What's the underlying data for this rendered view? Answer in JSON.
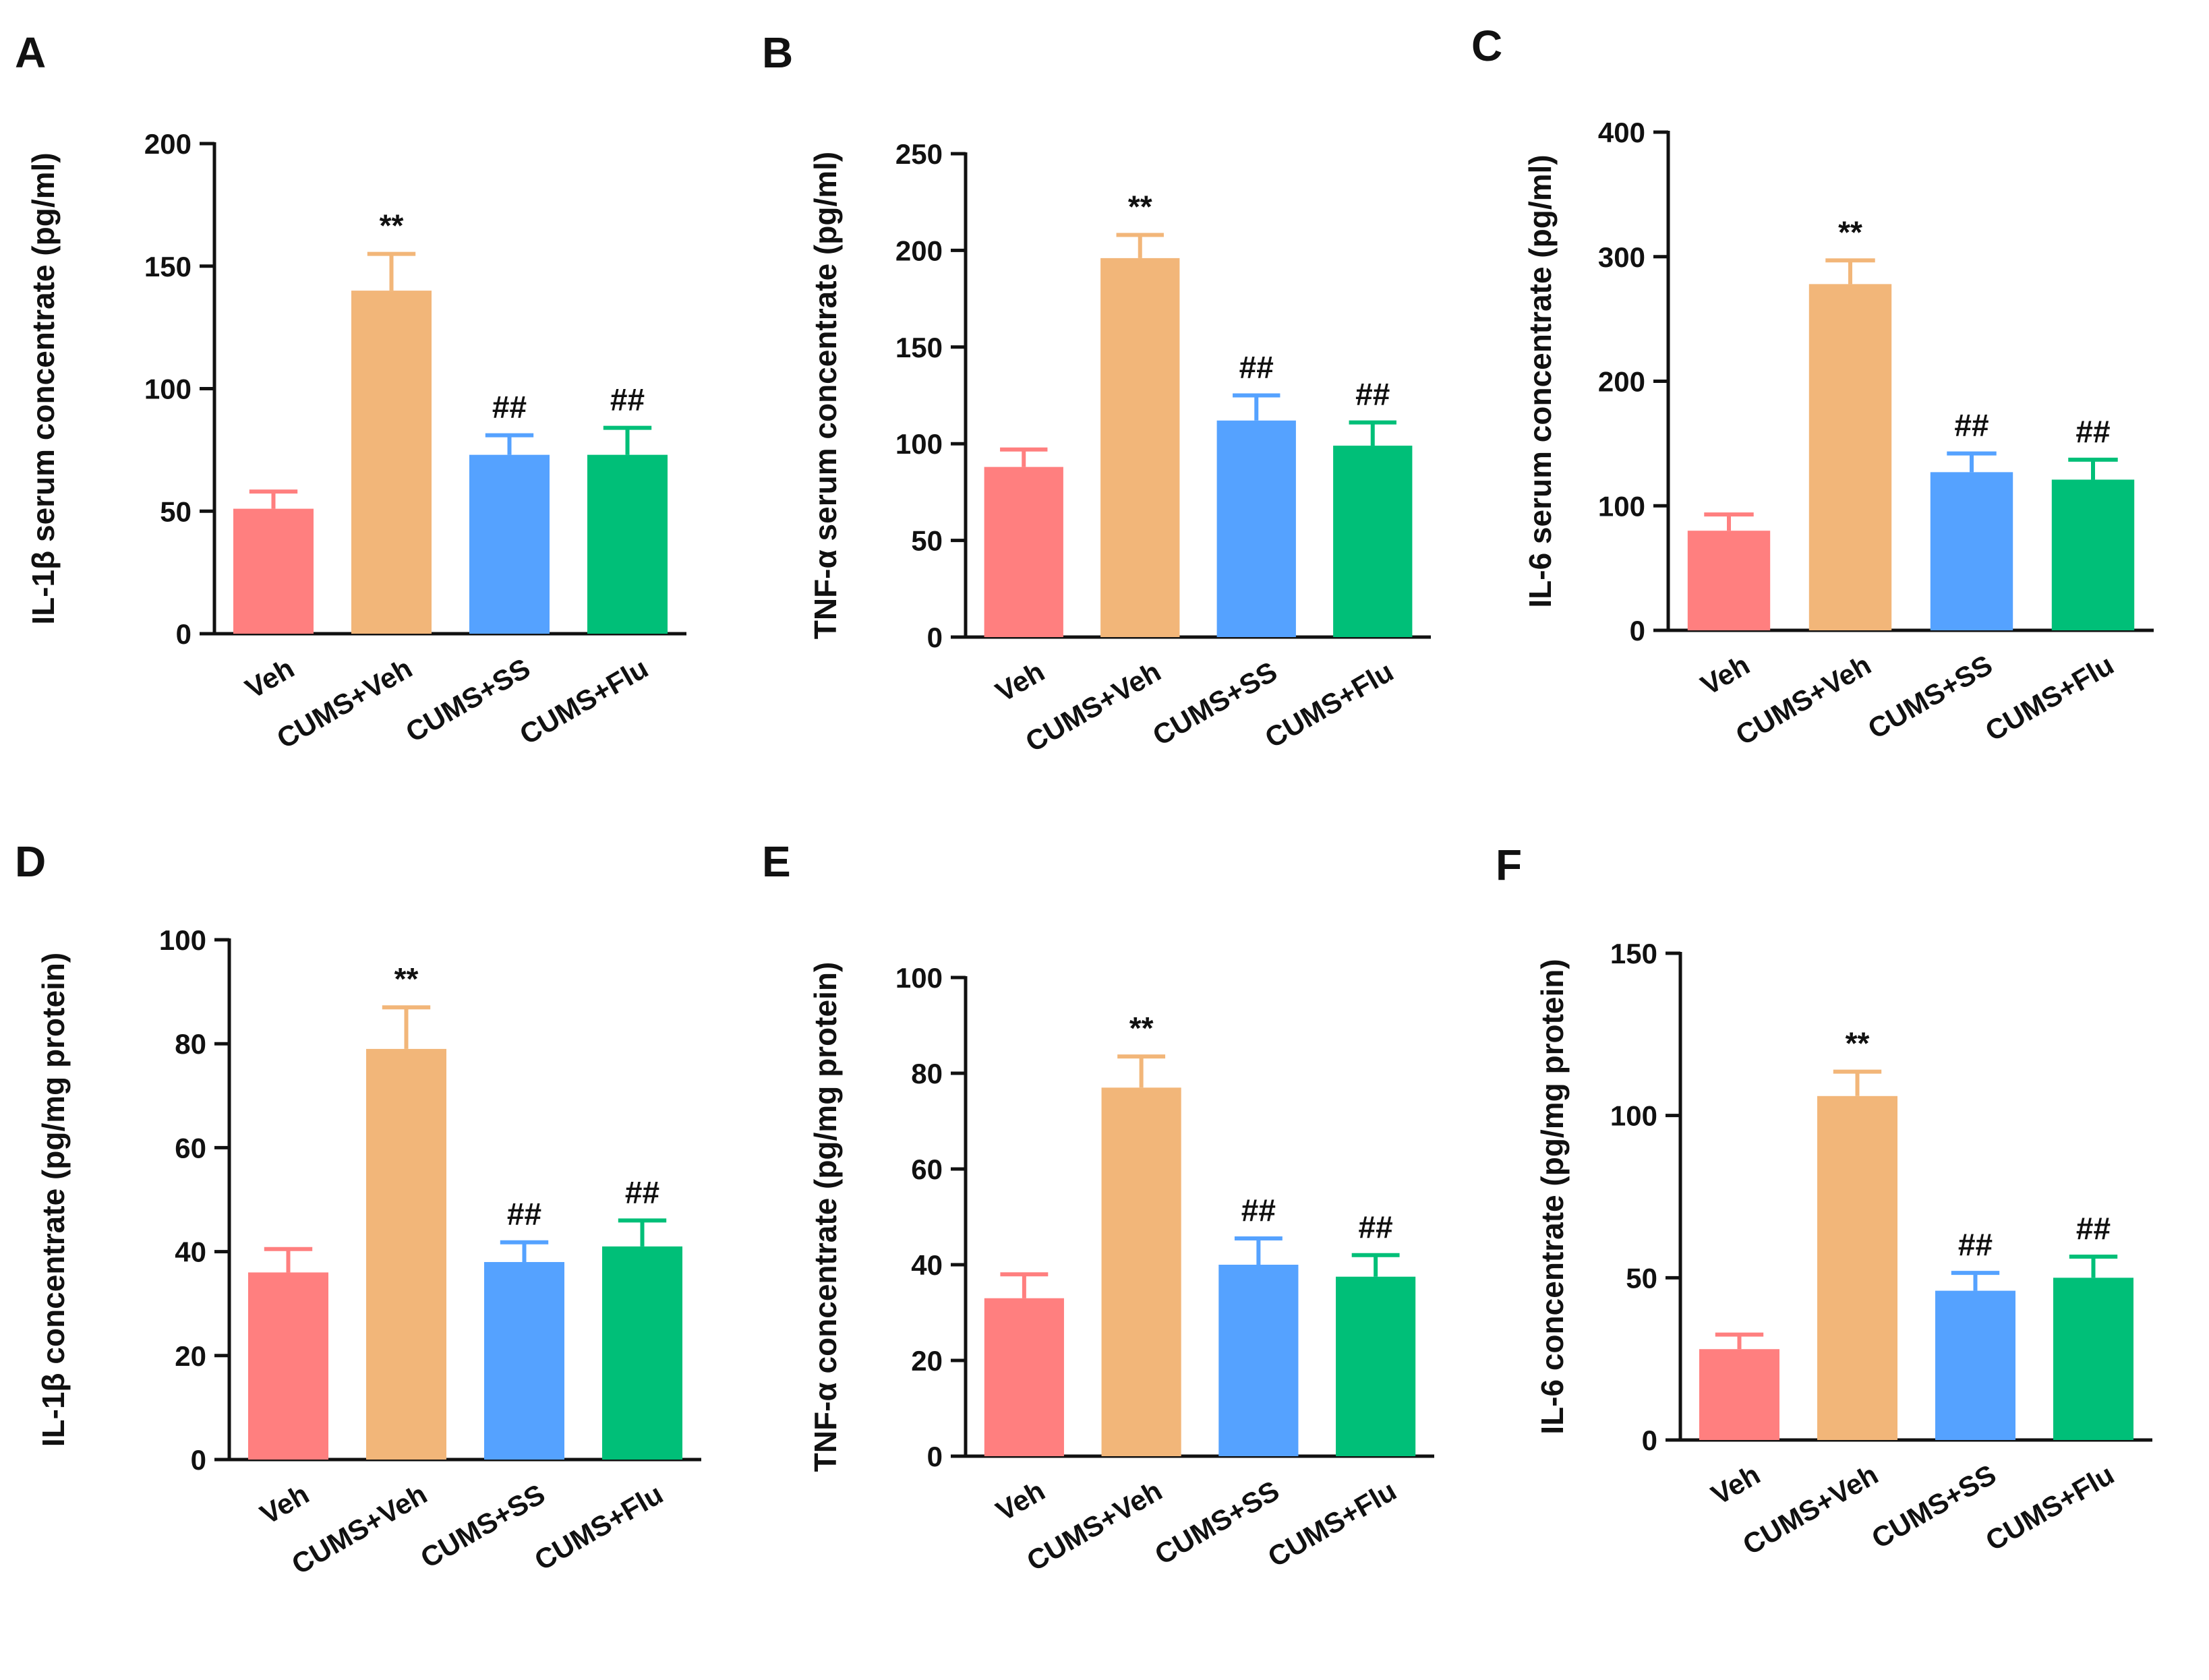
{
  "colors": [
    "#FF7F7F",
    "#F2B679",
    "#55A2FF",
    "#00BF78"
  ],
  "chart_data": [
    {
      "type": "bar",
      "panel": "A",
      "categories": [
        "Veh",
        "CUMS+Veh",
        "CUMS+SS",
        "CUMS+Flu"
      ],
      "values": [
        51,
        140,
        73,
        73
      ],
      "errors": [
        7,
        15,
        8,
        11
      ],
      "annotations": [
        "",
        "**",
        "##",
        "##"
      ],
      "ylabel": "IL-1β serum concentrate (pg/ml)",
      "ylim": [
        0,
        200
      ],
      "yticks": [
        "0",
        "50",
        "100",
        "150",
        "200"
      ]
    },
    {
      "type": "bar",
      "panel": "B",
      "categories": [
        "Veh",
        "CUMS+Veh",
        "CUMS+SS",
        "CUMS+Flu"
      ],
      "values": [
        88,
        196,
        112,
        99
      ],
      "errors": [
        9,
        12,
        13,
        12
      ],
      "annotations": [
        "",
        "**",
        "##",
        "##"
      ],
      "ylabel": "TNF-α serum concentrate (pg/ml)",
      "ylim": [
        0,
        250
      ],
      "yticks": [
        "0",
        "50",
        "100",
        "150",
        "200",
        "250"
      ]
    },
    {
      "type": "bar",
      "panel": "C",
      "categories": [
        "Veh",
        "CUMS+Veh",
        "CUMS+SS",
        "CUMS+Flu"
      ],
      "values": [
        80,
        278,
        127,
        121
      ],
      "errors": [
        13,
        19,
        15,
        16
      ],
      "annotations": [
        "",
        "**",
        "##",
        "##"
      ],
      "ylabel": "IL-6 serum concentrate (pg/ml)",
      "ylim": [
        0,
        400
      ],
      "yticks": [
        "0",
        "100",
        "200",
        "300",
        "400"
      ]
    },
    {
      "type": "bar",
      "panel": "D",
      "categories": [
        "Veh",
        "CUMS+Veh",
        "CUMS+SS",
        "CUMS+Flu"
      ],
      "values": [
        36,
        79,
        38,
        41
      ],
      "errors": [
        4.5,
        8,
        3.8,
        5
      ],
      "annotations": [
        "",
        "**",
        "##",
        "##"
      ],
      "ylabel": "IL-1β concentrate (pg/mg protein)",
      "ylim": [
        0,
        100
      ],
      "yticks": [
        "0",
        "20",
        "40",
        "60",
        "80",
        "100"
      ]
    },
    {
      "type": "bar",
      "panel": "E",
      "categories": [
        "Veh",
        "CUMS+Veh",
        "CUMS+SS",
        "CUMS+Flu"
      ],
      "values": [
        33,
        77,
        40,
        37.5
      ],
      "errors": [
        5,
        6.5,
        5.5,
        4.5
      ],
      "annotations": [
        "",
        "**",
        "##",
        "##"
      ],
      "ylabel": "TNF-α concentrate (pg/mg protein)",
      "ylim": [
        0,
        100
      ],
      "yticks": [
        "0",
        "20",
        "40",
        "60",
        "80",
        "100"
      ]
    },
    {
      "type": "bar",
      "panel": "F",
      "categories": [
        "Veh",
        "CUMS+Veh",
        "CUMS+SS",
        "CUMS+Flu"
      ],
      "values": [
        28,
        106,
        46,
        50
      ],
      "errors": [
        4.5,
        7.5,
        5.5,
        6.5
      ],
      "annotations": [
        "",
        "**",
        "##",
        "##"
      ],
      "ylabel": "IL-6 concentrate (pg/mg protein)",
      "ylim": [
        0,
        150
      ],
      "yticks": [
        "0",
        "50",
        "100",
        "150"
      ]
    }
  ]
}
